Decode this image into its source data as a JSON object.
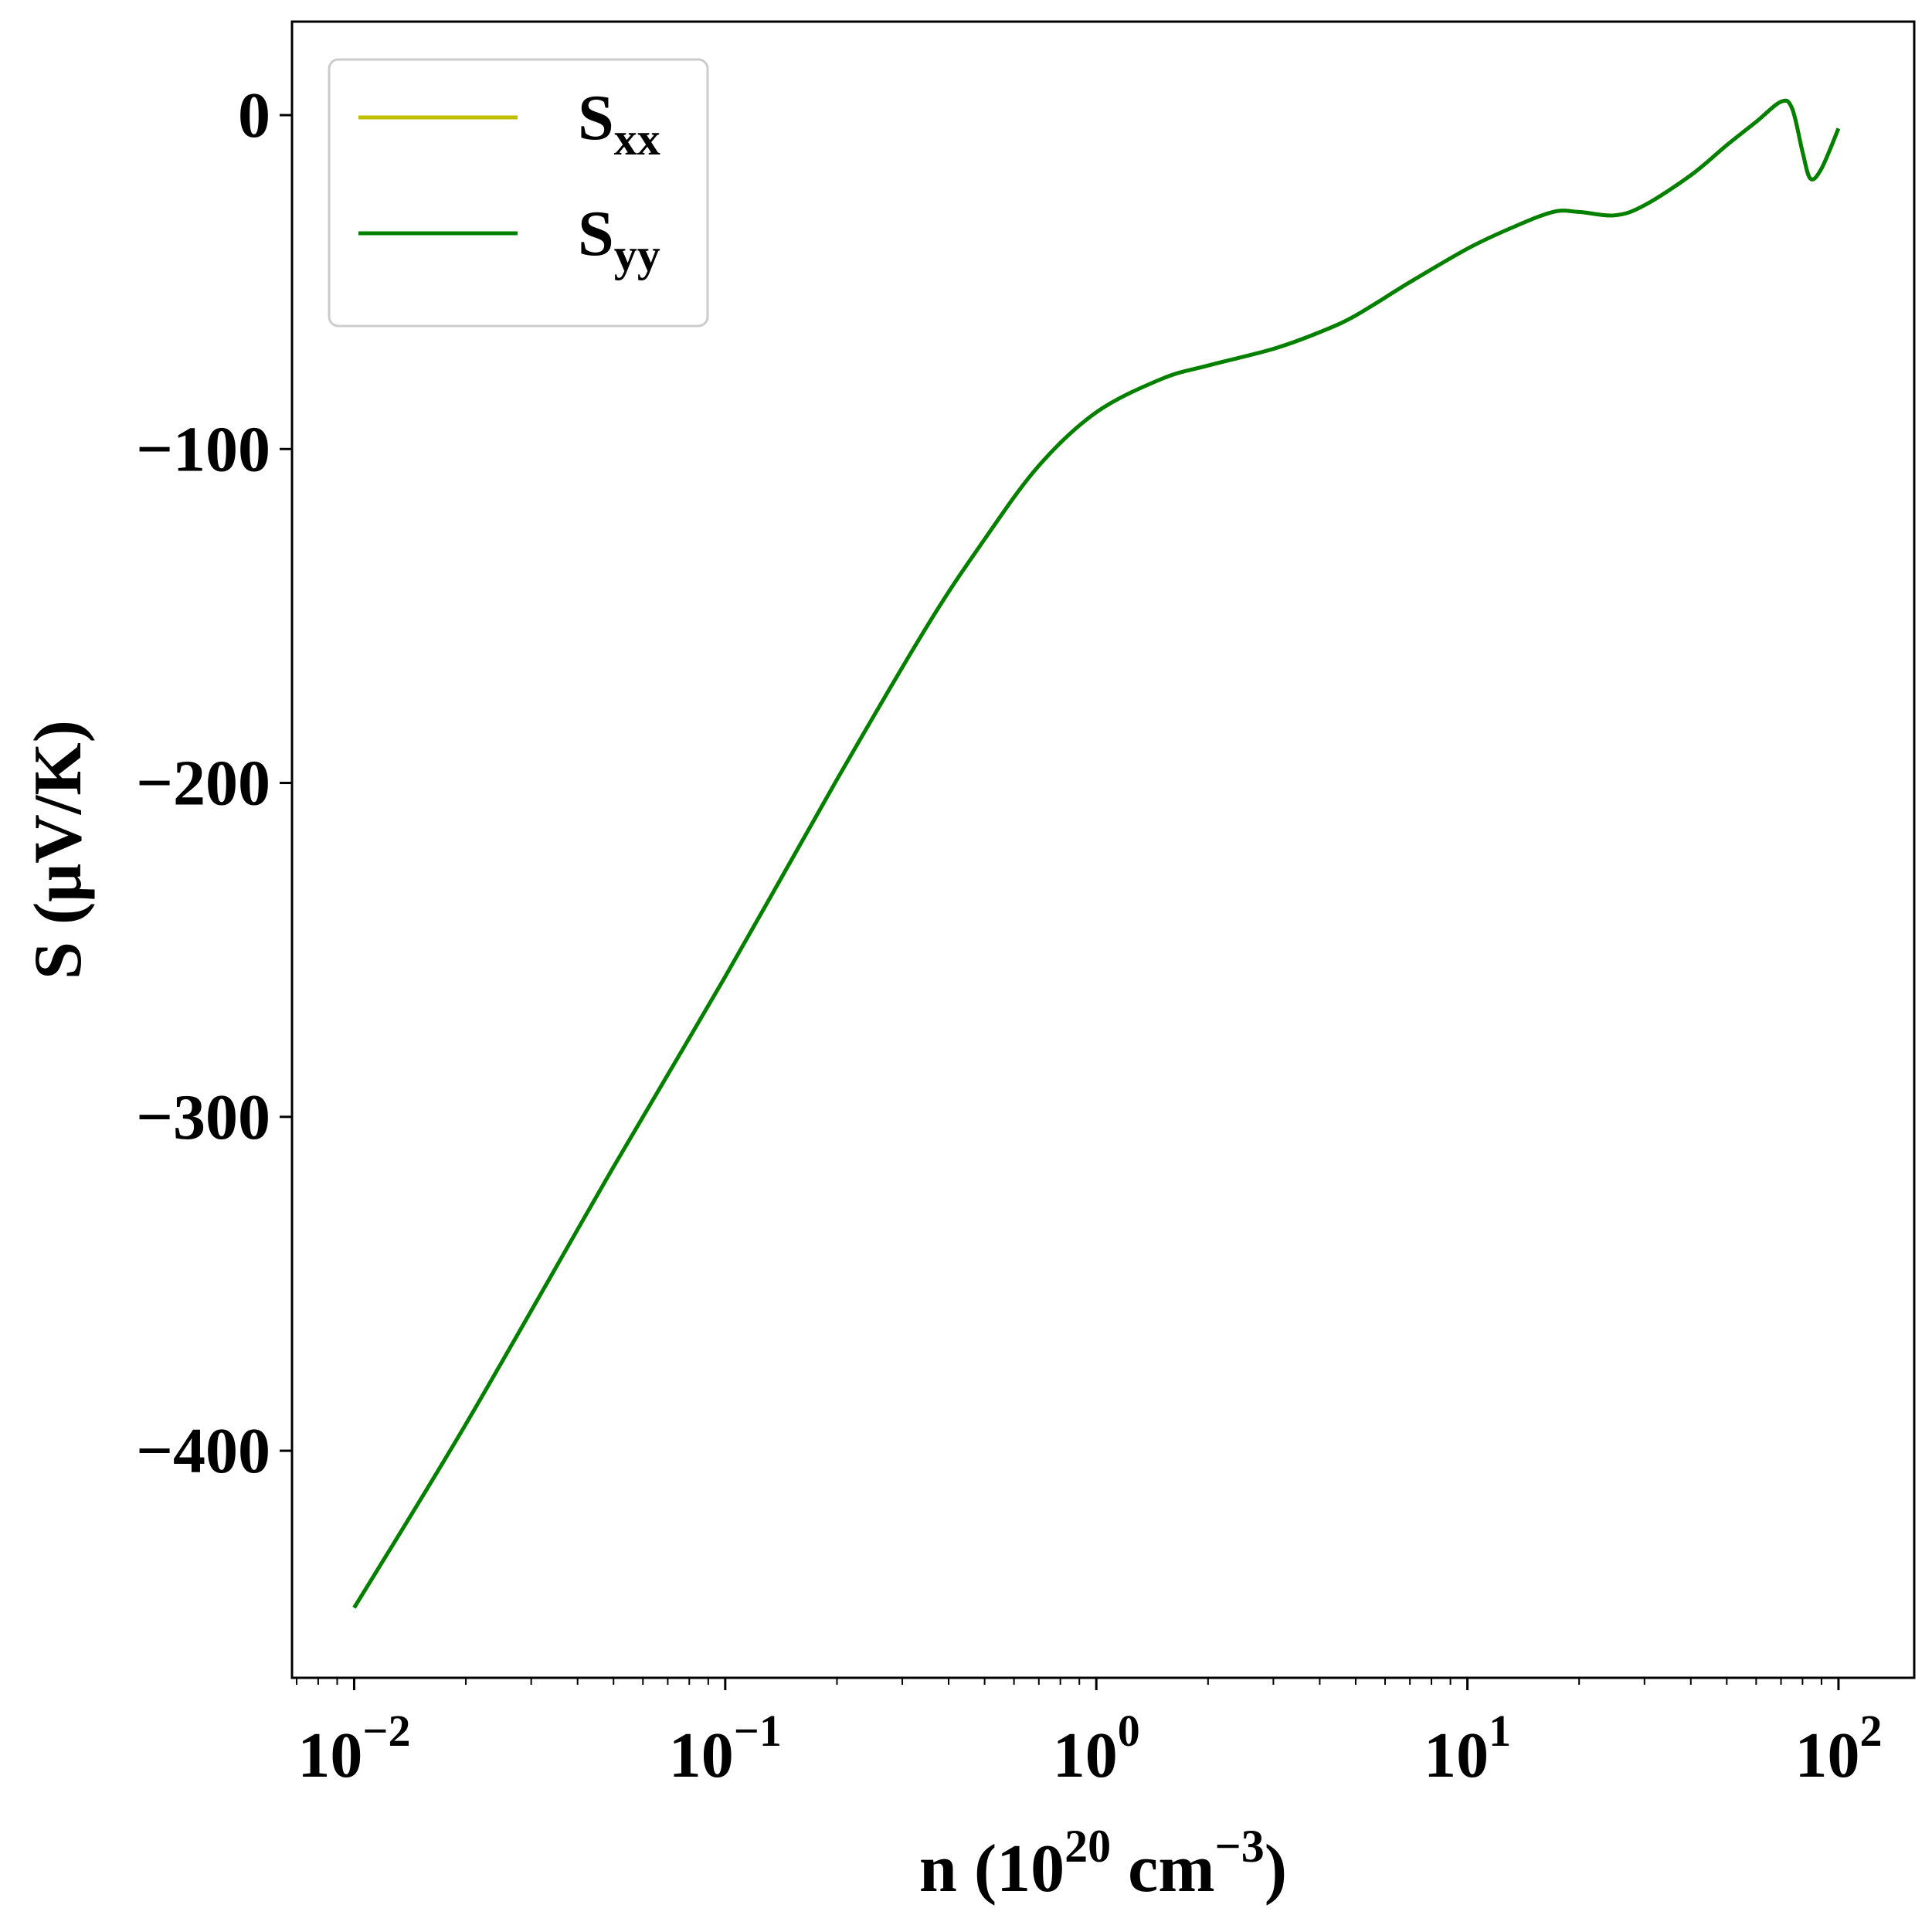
{
  "chart_data": {
    "type": "line",
    "xscale": "log",
    "xlim": [
      0.0068,
      160
    ],
    "ylim": [
      -468,
      28
    ],
    "grid": false,
    "legend_position": "top-left",
    "xlabel": {
      "prefix": "n (10",
      "exp1": "20",
      "mid": " cm",
      "exp2": "−3",
      "suffix": ")"
    },
    "ylabel": "S (μV/K)",
    "x_ticks": [
      {
        "value": 0.01,
        "base": "10",
        "exp": "−2"
      },
      {
        "value": 0.1,
        "base": "10",
        "exp": "−1"
      },
      {
        "value": 1,
        "base": "10",
        "exp": "0"
      },
      {
        "value": 10,
        "base": "10",
        "exp": "1"
      },
      {
        "value": 100,
        "base": "10",
        "exp": "2"
      }
    ],
    "y_ticks": [
      {
        "value": 0,
        "label": "0"
      },
      {
        "value": -100,
        "label": "−100"
      },
      {
        "value": -200,
        "label": "−200"
      },
      {
        "value": -300,
        "label": "−300"
      },
      {
        "value": -400,
        "label": "−400"
      }
    ],
    "series": [
      {
        "name": "S",
        "subscript": "xx",
        "color": "#bfbf00",
        "x": [
          0.01,
          0.02,
          0.05,
          0.1,
          0.2,
          0.35,
          0.5,
          0.7,
          1.0,
          1.5,
          2,
          3,
          4,
          5,
          7,
          10,
          13,
          17,
          20,
          25,
          30,
          40,
          50,
          60,
          70,
          75,
          80,
          84,
          90,
          100
        ],
        "y": [
          -447,
          -392,
          -315,
          -258,
          -199,
          -153,
          -127,
          -105,
          -89,
          -79,
          -75,
          -70,
          -65,
          -60,
          -50,
          -40,
          -34,
          -29,
          -29,
          -30,
          -27,
          -18,
          -9,
          -2,
          4,
          2,
          -11,
          -19,
          -16,
          -4
        ]
      },
      {
        "name": "S",
        "subscript": "yy",
        "color": "#008000",
        "x": [
          0.01,
          0.02,
          0.05,
          0.1,
          0.2,
          0.35,
          0.5,
          0.7,
          1.0,
          1.5,
          2,
          3,
          4,
          5,
          7,
          10,
          13,
          17,
          20,
          25,
          30,
          40,
          50,
          60,
          70,
          75,
          80,
          84,
          90,
          100
        ],
        "y": [
          -447,
          -392,
          -315,
          -258,
          -199,
          -153,
          -127,
          -105,
          -89,
          -79,
          -75,
          -70,
          -65,
          -60,
          -50,
          -40,
          -34,
          -29,
          -29,
          -30,
          -27,
          -18,
          -9,
          -2,
          4,
          2,
          -11,
          -19,
          -16,
          -4
        ]
      }
    ]
  }
}
